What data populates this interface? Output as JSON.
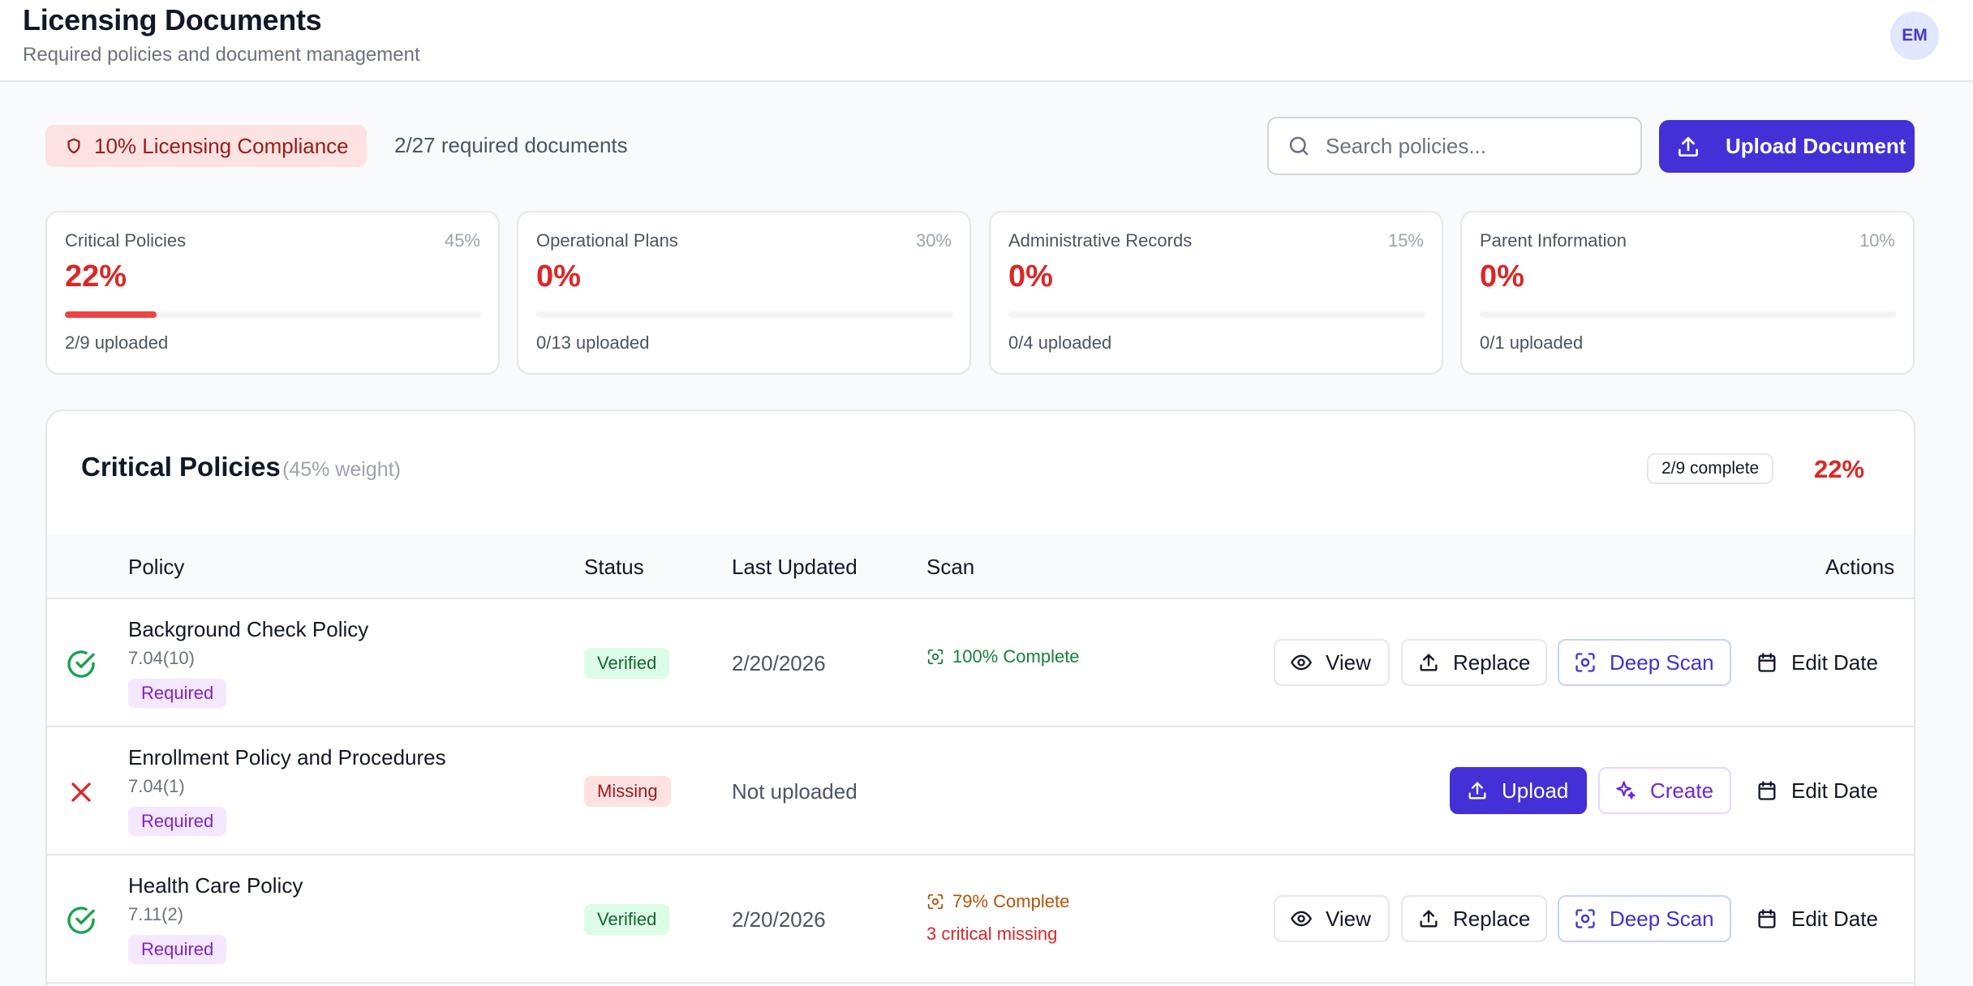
{
  "header": {
    "title": "Licensing Documents",
    "subtitle": "Required policies and document management",
    "avatar_initials": "EM"
  },
  "toolbar": {
    "compliance_label": "10% Licensing Compliance",
    "required_docs": "2/27 required documents",
    "search_placeholder": "Search policies...",
    "upload_label": "Upload Document"
  },
  "categories": [
    {
      "name": "Critical Policies",
      "weight": "45%",
      "percent": "22%",
      "uploaded": "2/9 uploaded",
      "progress": 0.22
    },
    {
      "name": "Operational Plans",
      "weight": "30%",
      "percent": "0%",
      "uploaded": "0/13 uploaded",
      "progress": 0
    },
    {
      "name": "Administrative Records",
      "weight": "15%",
      "percent": "0%",
      "uploaded": "0/4 uploaded",
      "progress": 0
    },
    {
      "name": "Parent Information",
      "weight": "10%",
      "percent": "0%",
      "uploaded": "0/1 uploaded",
      "progress": 0
    }
  ],
  "section": {
    "title": "Critical Policies",
    "weight": "(45% weight)",
    "complete": "2/9 complete",
    "percent": "22%",
    "columns": {
      "policy": "Policy",
      "status": "Status",
      "last_updated": "Last Updated",
      "scan": "Scan",
      "actions": "Actions"
    },
    "rows": [
      {
        "name": "Background Check Policy",
        "code": "7.04(10)",
        "required": "Required",
        "status": "Verified",
        "date": "2/20/2026",
        "scan": "100% Complete",
        "scan_missing": ""
      },
      {
        "name": "Enrollment Policy and Procedures",
        "code": "7.04(1)",
        "required": "Required",
        "status": "Missing",
        "date": "Not uploaded",
        "scan": "",
        "scan_missing": ""
      },
      {
        "name": "Health Care Policy",
        "code": "7.11(2)",
        "required": "Required",
        "status": "Verified",
        "date": "2/20/2026",
        "scan": "79% Complete",
        "scan_missing": "3 critical missing"
      }
    ]
  },
  "actions": {
    "view": "View",
    "replace": "Replace",
    "deep_scan": "Deep Scan",
    "edit_date": "Edit Date",
    "upload": "Upload",
    "create": "Create"
  },
  "colors": {
    "accent": "#4330d6",
    "danger": "#dc2626",
    "success": "#16a34a",
    "warning": "#b45309"
  },
  "icons": [
    "shield-icon",
    "search-icon",
    "upload-icon",
    "check-circle-icon",
    "x-icon",
    "scan-icon",
    "eye-icon",
    "calendar-icon",
    "sparkles-icon"
  ]
}
